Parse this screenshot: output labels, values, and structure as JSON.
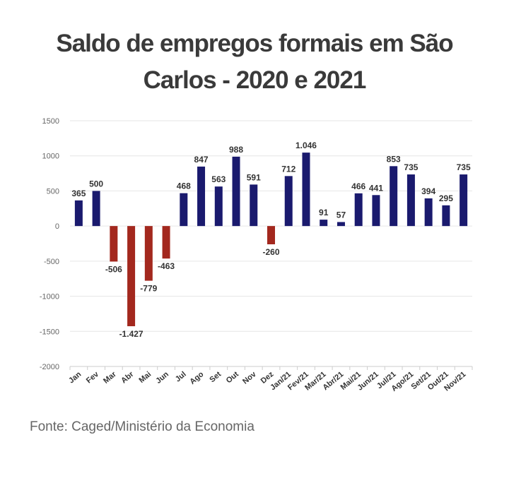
{
  "title": "Saldo de empregos formais em São Carlos - 2020 e 2021",
  "source": "Fonte: Caged/Ministério da Economia",
  "colors": {
    "positive": "#1a1a6e",
    "negative": "#a3281e",
    "grid": "#e6e6e6",
    "text": "#333333",
    "axis_text": "#666666"
  },
  "chart_data": {
    "type": "bar",
    "title": "Saldo de empregos formais em São Carlos - 2020 e 2021",
    "xlabel": "",
    "ylabel": "",
    "ylim": [
      -2000,
      1500
    ],
    "yticks": [
      "1500",
      "1000",
      "500",
      "0",
      "-500",
      "-1000",
      "-1500",
      "-2000"
    ],
    "ytick_values": [
      1500,
      1000,
      500,
      0,
      -500,
      -1000,
      -1500,
      -2000
    ],
    "grid": true,
    "legend": "none",
    "categories": [
      "Jan",
      "Fev",
      "Mar",
      "Abr",
      "Mai",
      "Jun",
      "Jul",
      "Ago",
      "Set",
      "Out",
      "Nov",
      "Dez",
      "Jan/21",
      "Fev/21",
      "Mar/21",
      "Abr/21",
      "Mai/21",
      "Jun/21",
      "Jul/21",
      "Ago/21",
      "Set/21",
      "Out/21",
      "Nov/21"
    ],
    "values": [
      365,
      500,
      -506,
      -1427,
      -779,
      -463,
      468,
      847,
      563,
      988,
      591,
      -260,
      712,
      1046,
      91,
      57,
      466,
      441,
      853,
      735,
      394,
      295,
      735
    ],
    "labels": [
      "365",
      "500",
      "-506",
      "-1.427",
      "-779",
      "-463",
      "468",
      "847",
      "563",
      "988",
      "591",
      "-260",
      "712",
      "1.046",
      "91",
      "57",
      "466",
      "441",
      "853",
      "735",
      "394",
      "295",
      "735"
    ]
  }
}
